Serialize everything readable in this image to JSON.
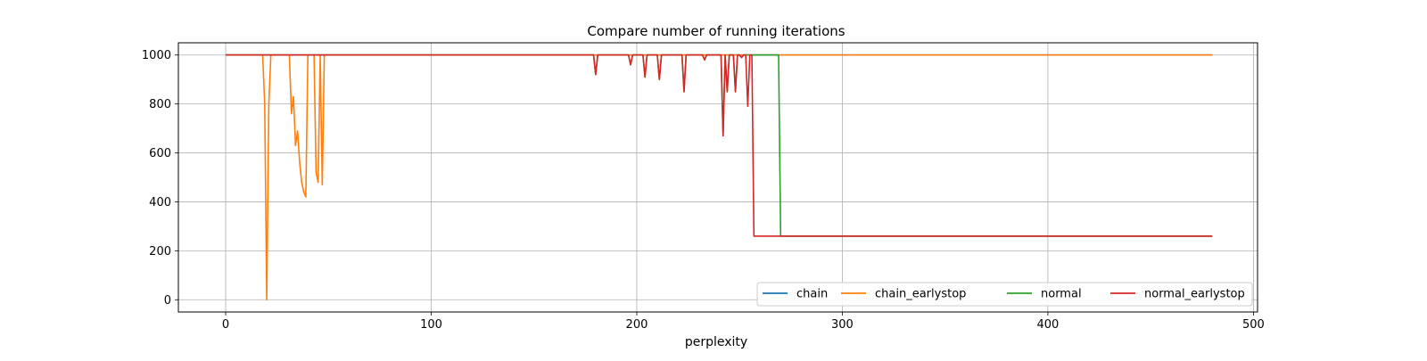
{
  "chart_data": {
    "type": "line",
    "title": "Compare number of running iterations",
    "xlabel": "perplexity",
    "ylabel": "",
    "xlim": [
      -23,
      502
    ],
    "ylim": [
      -50,
      1050
    ],
    "xticks": [
      0,
      100,
      200,
      300,
      400,
      500
    ],
    "xtick_labels": [
      "0",
      "100",
      "200",
      "300",
      "400",
      "500"
    ],
    "yticks": [
      0,
      200,
      400,
      600,
      800,
      1000
    ],
    "ytick_labels": [
      "0",
      "200",
      "400",
      "600",
      "800",
      "1000"
    ],
    "grid": true,
    "legend": {
      "position": "lower-right",
      "columns": 4
    },
    "series": [
      {
        "name": "chain",
        "color": "#1f77b4",
        "x": [
          0,
          480
        ],
        "y": [
          1000,
          1000
        ]
      },
      {
        "name": "chain_earlystop",
        "color": "#ff7f0e",
        "x": [
          0,
          18,
          19,
          20,
          21,
          22,
          23,
          30,
          31,
          32,
          33,
          34,
          35,
          36,
          37,
          38,
          39,
          40,
          41,
          42,
          43,
          44,
          45,
          46,
          47,
          48,
          49,
          480
        ],
        "y": [
          1000,
          1000,
          800,
          0,
          800,
          1000,
          1000,
          1000,
          1000,
          760,
          830,
          630,
          690,
          560,
          480,
          440,
          420,
          1000,
          1000,
          1000,
          1000,
          520,
          480,
          1000,
          470,
          1000,
          1000,
          1000
        ]
      },
      {
        "name": "normal",
        "color": "#2ca02c",
        "x": [
          0,
          179,
          180,
          181,
          196,
          197,
          198,
          203,
          204,
          205,
          210,
          211,
          212,
          222,
          223,
          224,
          232,
          233,
          234,
          240,
          241,
          242,
          243,
          244,
          245,
          246,
          247,
          248,
          249,
          250,
          251,
          252,
          253,
          254,
          255,
          268,
          269,
          270,
          480
        ],
        "y": [
          1000,
          1000,
          920,
          1000,
          1000,
          960,
          1000,
          1000,
          910,
          1000,
          1000,
          900,
          1000,
          1000,
          850,
          1000,
          1000,
          980,
          1000,
          1000,
          1000,
          670,
          1000,
          850,
          1000,
          1000,
          1000,
          850,
          1000,
          1000,
          990,
          1000,
          1000,
          1000,
          1000,
          1000,
          1000,
          260,
          260
        ]
      },
      {
        "name": "normal_earlystop",
        "color": "#d62728",
        "x": [
          0,
          179,
          180,
          181,
          196,
          197,
          198,
          203,
          204,
          205,
          210,
          211,
          212,
          222,
          223,
          224,
          232,
          233,
          234,
          240,
          241,
          242,
          243,
          244,
          245,
          246,
          247,
          248,
          249,
          250,
          251,
          252,
          253,
          254,
          255,
          256,
          257,
          480
        ],
        "y": [
          1000,
          1000,
          920,
          1000,
          1000,
          960,
          1000,
          1000,
          910,
          1000,
          1000,
          900,
          1000,
          1000,
          850,
          1000,
          1000,
          980,
          1000,
          1000,
          1000,
          670,
          1000,
          850,
          1000,
          1000,
          1000,
          850,
          1000,
          1000,
          990,
          1000,
          1000,
          790,
          1000,
          1000,
          260,
          260
        ]
      }
    ]
  }
}
